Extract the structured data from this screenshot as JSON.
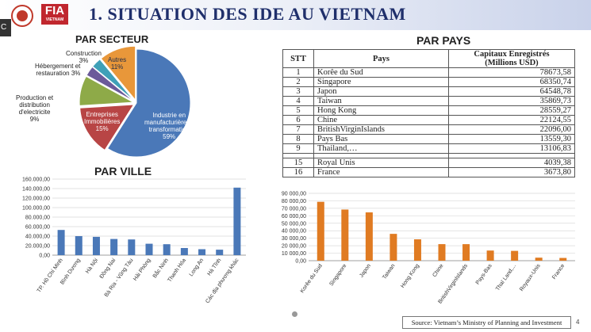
{
  "header": {
    "title": "1. SITUATION DES IDE AU VIETNAM",
    "logo_fia_text": "FIA",
    "logo_fia_sub": "VIETNAM",
    "side_tag": "C"
  },
  "par_secteur": {
    "title": "PAR SECTEUR",
    "slices": [
      {
        "label_lines": [
          "Industrie en",
          "manufacturière et",
          "transformation",
          "59%"
        ],
        "value": 59,
        "color": "#4a78b8"
      },
      {
        "label_lines": [
          "Entreprises",
          "Immobilières",
          "15%"
        ],
        "value": 15,
        "color": "#b84545"
      },
      {
        "label_lines": [
          "Production et",
          "distribution",
          "d'electricite",
          "9%"
        ],
        "value": 9,
        "color": "#8eaa48"
      },
      {
        "label_lines": [
          "Hébergement et",
          "restauration 3%"
        ],
        "value": 3,
        "color": "#6b5a9a"
      },
      {
        "label_lines": [
          "Construction",
          "3%"
        ],
        "value": 3,
        "color": "#3fa0b8"
      },
      {
        "label_lines": [
          "Autres",
          "11%"
        ],
        "value": 11,
        "color": "#e8973a"
      }
    ]
  },
  "par_pays": {
    "title": "PAR PAYS",
    "headers": {
      "stt": "STT",
      "pays": "Pays",
      "capitaux_line1": "Capitaux Enregistrés",
      "capitaux_line2": "(Millions USD)"
    },
    "rows": [
      {
        "stt": "1",
        "pays": "Korêe du Sud",
        "value": "78673,58"
      },
      {
        "stt": "2",
        "pays": "Singapore",
        "value": "68350,74"
      },
      {
        "stt": "3",
        "pays": "Japon",
        "value": "64548,78"
      },
      {
        "stt": "4",
        "pays": "Taiwan",
        "value": "35869,73"
      },
      {
        "stt": "5",
        "pays": "Hong Kong",
        "value": "28559,27"
      },
      {
        "stt": "6",
        "pays": "Chine",
        "value": "22124,55"
      },
      {
        "stt": "7",
        "pays": "BritishVirginIslands",
        "value": "22096,00"
      },
      {
        "stt": "8",
        "pays": "Pays Bas",
        "value": "13559,30"
      },
      {
        "stt": "9",
        "pays": "Thailand,…",
        "value": "13106,83"
      },
      {
        "stt": "15",
        "pays": "Royal Unis",
        "value": "4039,38"
      },
      {
        "stt": "16",
        "pays": "France",
        "value": "3673,80"
      }
    ]
  },
  "chart_data": [
    {
      "type": "pie",
      "title": "PAR SECTEUR",
      "categories": [
        "Industrie en manufacturière et transformation",
        "Entreprises Immobilières",
        "Production et distribution d'electricite",
        "Hébergement et restauration",
        "Construction",
        "Autres"
      ],
      "values": [
        59,
        15,
        9,
        3,
        3,
        11
      ]
    },
    {
      "type": "bar",
      "title": "PAR VILLE",
      "categories": [
        "TP. Hồ Chí Minh",
        "Bình Dương",
        "Hà Nội",
        "Đồng Nai",
        "Bà Rịa - Vũng Tàu",
        "Hải Phòng",
        "Bắc Ninh",
        "Thanh Hóa",
        "Long An",
        "Hà Tĩnh",
        "Các địa phương khác"
      ],
      "values": [
        53000,
        40000,
        38500,
        34000,
        33000,
        24000,
        23000,
        15000,
        12500,
        11500,
        142000
      ],
      "ylim": [
        0,
        160000
      ],
      "yticks": [
        "0,00",
        "20.000,00",
        "40.000,00",
        "60.000,00",
        "80.000,00",
        "100.000,00",
        "120.000,00",
        "140.000,00",
        "160.000,00"
      ],
      "color": "#4a78b8",
      "grid": true
    },
    {
      "type": "bar",
      "title": "",
      "categories": [
        "Korêe du Sud",
        "Singapore",
        "Japon",
        "Taiwan",
        "Hong Kong",
        "Chine",
        "BritishVirginIslands",
        "Pays-Bas",
        "Thaï Land,...",
        "Royaux-Unis",
        "France"
      ],
      "values": [
        78673.58,
        68350.74,
        64548.78,
        35869.73,
        28559.27,
        22124.55,
        22096.0,
        13559.3,
        13106.83,
        4039.38,
        3673.8
      ],
      "ylim": [
        0,
        90000
      ],
      "yticks": [
        "0,00",
        "10 000,00",
        "20 000,00",
        "30 000,00",
        "40 000,00",
        "50 000,00",
        "60 000,00",
        "70 000,00",
        "80 000,00",
        "90 000,00"
      ],
      "color": "#e07b22",
      "grid": true
    }
  ],
  "par_ville": {
    "title": "PAR VILLE"
  },
  "footer": {
    "source": "Source: Vietnam’s Ministry of Planning and Investment",
    "page_number": "4"
  }
}
